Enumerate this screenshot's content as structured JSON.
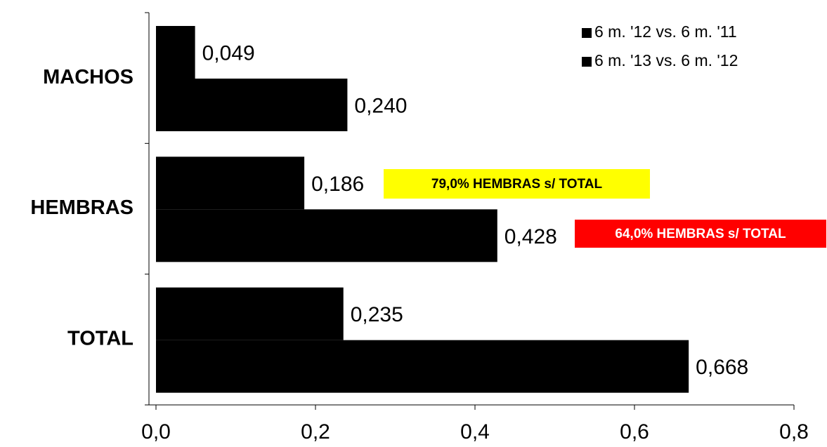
{
  "chart_data": {
    "type": "barh",
    "categories": [
      "MACHOS",
      "HEMBRAS",
      "TOTAL"
    ],
    "series": [
      {
        "name": "6 m. '12 vs. 6 m. '11",
        "color": "#000000",
        "values": [
          0.049,
          0.186,
          0.235
        ],
        "value_labels": [
          "0,049",
          "0,186",
          "0,235"
        ]
      },
      {
        "name": "6 m. '13 vs. 6 m. '12",
        "color": "#000000",
        "values": [
          0.24,
          0.428,
          0.668
        ],
        "value_labels": [
          "0,240",
          "0,428",
          "0,668"
        ]
      }
    ],
    "xlim": [
      0,
      0.8
    ],
    "xticks": [
      {
        "value": 0,
        "label": "0,0"
      },
      {
        "value": 0.2,
        "label": "0,2"
      },
      {
        "value": 0.4,
        "label": "0,4"
      },
      {
        "value": 0.6,
        "label": "0,6"
      },
      {
        "value": 0.8,
        "label": "0,8"
      }
    ],
    "legend": "upper right",
    "annotations": [
      {
        "text": "79,0% HEMBRAS s/ TOTAL",
        "color": "#ffff00",
        "text_color": "#000000"
      },
      {
        "text": "64,0% HEMBRAS s/ TOTAL",
        "color": "#ff0000",
        "text_color": "#ffffff"
      }
    ]
  }
}
